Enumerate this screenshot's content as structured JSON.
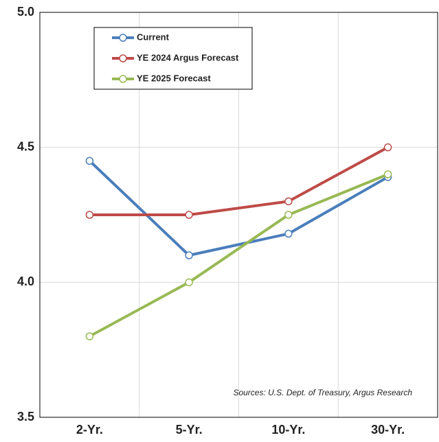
{
  "chart_data": {
    "type": "line",
    "categories": [
      "2-Yr.",
      "5-Yr.",
      "10-Yr.",
      "30-Yr."
    ],
    "series": [
      {
        "name": "Current",
        "color": "#4a7ebb",
        "values": [
          4.45,
          4.1,
          4.18,
          4.39
        ]
      },
      {
        "name": "YE 2024 Argus Forecast",
        "color": "#be4b48",
        "values": [
          4.25,
          4.25,
          4.3,
          4.5
        ]
      },
      {
        "name": "YE 2025 Forecast",
        "color": "#98b954",
        "values": [
          3.8,
          4.0,
          4.25,
          4.4
        ]
      }
    ],
    "ylim": [
      3.5,
      5.0
    ],
    "yticks": [
      3.5,
      {
        "value": 4,
        "label": "4.0"
      },
      4.5,
      {
        "value": 5,
        "label": "5.0"
      }
    ],
    "grid": true,
    "annotation": "Sources: U.S. Dept. of Treasury, Argus Research"
  }
}
